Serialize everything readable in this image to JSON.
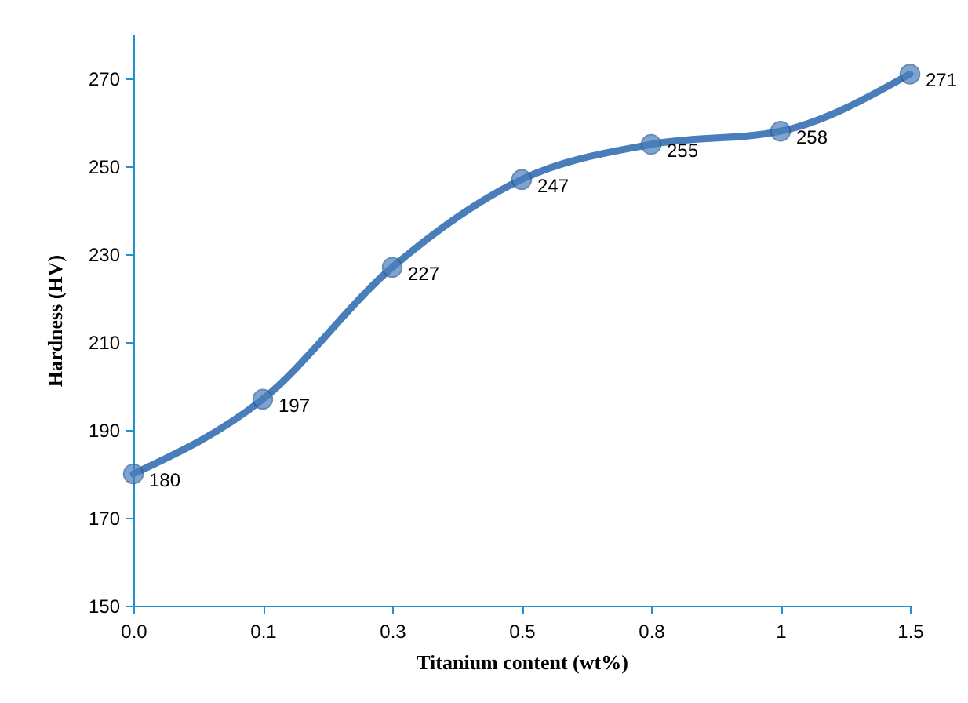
{
  "chart_data": {
    "type": "line",
    "xlabel": "Titanium content (wt%)",
    "ylabel": "Hardness (HV)",
    "categories": [
      "0.0",
      "0.1",
      "0.3",
      "0.5",
      "0.8",
      "1",
      "1.5"
    ],
    "series": [
      {
        "color": "#4a7ebb",
        "values": [
          180,
          197,
          227,
          247,
          255,
          258,
          271
        ]
      }
    ],
    "ylim": [
      150,
      280
    ],
    "yticks": [
      150,
      170,
      190,
      210,
      230,
      250,
      270
    ],
    "grid": false,
    "legend": false,
    "marker": "circle",
    "line_style": "solid",
    "data_labels": true
  }
}
